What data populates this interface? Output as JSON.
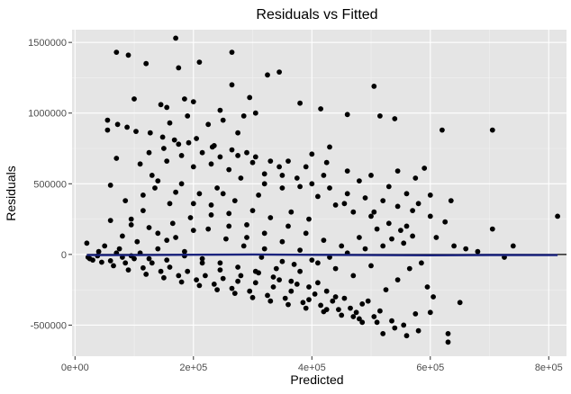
{
  "chart_data": {
    "type": "scatter",
    "title": "Residuals vs Fitted",
    "xlabel": "Predicted",
    "ylabel": "Residuals",
    "xlim": [
      -5000,
      830000
    ],
    "ylim": [
      -720000,
      1590000
    ],
    "x_ticks": [
      0,
      200000,
      400000,
      600000,
      800000
    ],
    "x_tick_labels": [
      "0e+00",
      "2e+05",
      "4e+05",
      "6e+05",
      "8e+05"
    ],
    "y_ticks": [
      -500000,
      0,
      500000,
      1000000,
      1500000
    ],
    "y_tick_labels": [
      "-500000",
      "0",
      "500000",
      "1000000",
      "1500000"
    ],
    "grid": true,
    "zero_line": 0,
    "colors": {
      "panel": "#e5e5e5",
      "grid_major": "#ffffff",
      "points": "#000000",
      "zero_line": "#000000",
      "smooth_line": "#1a237e"
    },
    "points": [
      [
        170000,
        1530000
      ],
      [
        70000,
        1430000
      ],
      [
        90000,
        1410000
      ],
      [
        265000,
        1430000
      ],
      [
        120000,
        1350000
      ],
      [
        175000,
        1320000
      ],
      [
        345000,
        1290000
      ],
      [
        325000,
        1270000
      ],
      [
        210000,
        1360000
      ],
      [
        265000,
        1200000
      ],
      [
        505000,
        1190000
      ],
      [
        100000,
        1100000
      ],
      [
        185000,
        1100000
      ],
      [
        145000,
        1060000
      ],
      [
        155000,
        1040000
      ],
      [
        295000,
        1110000
      ],
      [
        380000,
        1070000
      ],
      [
        415000,
        1030000
      ],
      [
        460000,
        990000
      ],
      [
        515000,
        980000
      ],
      [
        540000,
        960000
      ],
      [
        305000,
        1000000
      ],
      [
        55000,
        950000
      ],
      [
        55000,
        880000
      ],
      [
        72000,
        920000
      ],
      [
        88000,
        900000
      ],
      [
        103000,
        870000
      ],
      [
        127000,
        860000
      ],
      [
        148000,
        830000
      ],
      [
        168000,
        810000
      ],
      [
        192000,
        790000
      ],
      [
        232000,
        760000
      ],
      [
        305000,
        690000
      ],
      [
        330000,
        660000
      ],
      [
        345000,
        620000
      ],
      [
        400000,
        710000
      ],
      [
        430000,
        760000
      ],
      [
        620000,
        880000
      ],
      [
        705000,
        880000
      ],
      [
        70000,
        680000
      ],
      [
        110000,
        640000
      ],
      [
        130000,
        560000
      ],
      [
        60000,
        490000
      ],
      [
        180000,
        500000
      ],
      [
        250000,
        430000
      ],
      [
        310000,
        420000
      ],
      [
        365000,
        300000
      ],
      [
        395000,
        250000
      ],
      [
        455000,
        360000
      ],
      [
        505000,
        300000
      ],
      [
        560000,
        200000
      ],
      [
        590000,
        610000
      ],
      [
        600000,
        420000
      ],
      [
        635000,
        380000
      ],
      [
        625000,
        230000
      ],
      [
        610000,
        120000
      ],
      [
        640000,
        60000
      ],
      [
        660000,
        40000
      ],
      [
        680000,
        20000
      ],
      [
        705000,
        180000
      ],
      [
        740000,
        60000
      ],
      [
        725000,
        -20000
      ],
      [
        815000,
        270000
      ],
      [
        80000,
        130000
      ],
      [
        95000,
        210000
      ],
      [
        115000,
        310000
      ],
      [
        85000,
        380000
      ],
      [
        60000,
        240000
      ],
      [
        50000,
        60000
      ],
      [
        38000,
        -10000
      ],
      [
        20000,
        80000
      ],
      [
        22000,
        -20000
      ],
      [
        25000,
        -30000
      ],
      [
        30000,
        -40000
      ],
      [
        45000,
        -55000
      ],
      [
        65000,
        -80000
      ],
      [
        90000,
        -110000
      ],
      [
        120000,
        -140000
      ],
      [
        150000,
        -165000
      ],
      [
        180000,
        -195000
      ],
      [
        210000,
        -220000
      ],
      [
        240000,
        -250000
      ],
      [
        270000,
        -275000
      ],
      [
        300000,
        -305000
      ],
      [
        330000,
        -330000
      ],
      [
        360000,
        -355000
      ],
      [
        390000,
        -380000
      ],
      [
        420000,
        -405000
      ],
      [
        450000,
        -430000
      ],
      [
        480000,
        -455000
      ],
      [
        510000,
        -480000
      ],
      [
        540000,
        -520000
      ],
      [
        560000,
        -575000
      ],
      [
        580000,
        -540000
      ],
      [
        600000,
        -410000
      ],
      [
        630000,
        -560000
      ],
      [
        630000,
        -620000
      ],
      [
        650000,
        -340000
      ],
      [
        520000,
        -560000
      ],
      [
        470000,
        -440000
      ],
      [
        440000,
        -300000
      ],
      [
        410000,
        -200000
      ],
      [
        380000,
        -120000
      ],
      [
        350000,
        -50000
      ],
      [
        320000,
        40000
      ],
      [
        290000,
        120000
      ],
      [
        260000,
        200000
      ],
      [
        230000,
        280000
      ],
      [
        200000,
        360000
      ],
      [
        170000,
        440000
      ],
      [
        140000,
        520000
      ],
      [
        200000,
        620000
      ],
      [
        230000,
        640000
      ],
      [
        260000,
        600000
      ],
      [
        280000,
        540000
      ],
      [
        320000,
        500000
      ],
      [
        350000,
        470000
      ],
      [
        380000,
        480000
      ],
      [
        410000,
        410000
      ],
      [
        440000,
        350000
      ],
      [
        470000,
        300000
      ],
      [
        500000,
        270000
      ],
      [
        530000,
        220000
      ],
      [
        550000,
        170000
      ],
      [
        570000,
        130000
      ],
      [
        555000,
        80000
      ],
      [
        520000,
        60000
      ],
      [
        490000,
        40000
      ],
      [
        460000,
        10000
      ],
      [
        430000,
        -20000
      ],
      [
        400000,
        -40000
      ],
      [
        370000,
        -70000
      ],
      [
        340000,
        -100000
      ],
      [
        310000,
        -130000
      ],
      [
        280000,
        -150000
      ],
      [
        250000,
        -170000
      ],
      [
        220000,
        -150000
      ],
      [
        190000,
        -120000
      ],
      [
        160000,
        -90000
      ],
      [
        130000,
        -60000
      ],
      [
        100000,
        -30000
      ],
      [
        75000,
        40000
      ],
      [
        105000,
        90000
      ],
      [
        140000,
        150000
      ],
      [
        165000,
        220000
      ],
      [
        195000,
        260000
      ],
      [
        225000,
        180000
      ],
      [
        255000,
        110000
      ],
      [
        285000,
        60000
      ],
      [
        315000,
        -20000
      ],
      [
        345000,
        -180000
      ],
      [
        375000,
        -210000
      ],
      [
        405000,
        -280000
      ],
      [
        435000,
        -330000
      ],
      [
        465000,
        -380000
      ],
      [
        495000,
        -330000
      ],
      [
        525000,
        -250000
      ],
      [
        545000,
        -180000
      ],
      [
        565000,
        -100000
      ],
      [
        585000,
        -60000
      ],
      [
        595000,
        -230000
      ],
      [
        605000,
        -300000
      ],
      [
        575000,
        -420000
      ],
      [
        485000,
        -480000
      ],
      [
        425000,
        -390000
      ],
      [
        395000,
        -320000
      ],
      [
        365000,
        -260000
      ],
      [
        335000,
        -230000
      ],
      [
        305000,
        -200000
      ],
      [
        275000,
        -190000
      ],
      [
        245000,
        -110000
      ],
      [
        215000,
        -60000
      ],
      [
        185000,
        20000
      ],
      [
        155000,
        100000
      ],
      [
        125000,
        190000
      ],
      [
        95000,
        250000
      ],
      [
        115000,
        420000
      ],
      [
        135000,
        470000
      ],
      [
        160000,
        360000
      ],
      [
        210000,
        430000
      ],
      [
        240000,
        470000
      ],
      [
        270000,
        380000
      ],
      [
        300000,
        310000
      ],
      [
        330000,
        260000
      ],
      [
        360000,
        200000
      ],
      [
        390000,
        150000
      ],
      [
        420000,
        100000
      ],
      [
        450000,
        60000
      ],
      [
        480000,
        120000
      ],
      [
        510000,
        180000
      ],
      [
        535000,
        110000
      ],
      [
        500000,
        -80000
      ],
      [
        470000,
        -150000
      ],
      [
        440000,
        -100000
      ],
      [
        410000,
        -60000
      ],
      [
        380000,
        30000
      ],
      [
        350000,
        90000
      ],
      [
        320000,
        150000
      ],
      [
        290000,
        210000
      ],
      [
        260000,
        290000
      ],
      [
        230000,
        350000
      ],
      [
        200000,
        170000
      ],
      [
        170000,
        120000
      ],
      [
        140000,
        40000
      ],
      [
        110000,
        10000
      ],
      [
        80000,
        -20000
      ],
      [
        60000,
        -45000
      ],
      [
        200000,
        1080000
      ],
      [
        245000,
        1020000
      ],
      [
        275000,
        860000
      ],
      [
        225000,
        920000
      ],
      [
        250000,
        950000
      ],
      [
        285000,
        980000
      ],
      [
        190000,
        980000
      ],
      [
        160000,
        930000
      ],
      [
        180000,
        700000
      ],
      [
        215000,
        720000
      ],
      [
        245000,
        690000
      ],
      [
        275000,
        700000
      ],
      [
        300000,
        650000
      ],
      [
        155000,
        660000
      ],
      [
        125000,
        720000
      ],
      [
        150000,
        750000
      ],
      [
        175000,
        780000
      ],
      [
        205000,
        820000
      ],
      [
        235000,
        770000
      ],
      [
        265000,
        740000
      ],
      [
        290000,
        720000
      ],
      [
        320000,
        570000
      ],
      [
        350000,
        560000
      ],
      [
        375000,
        540000
      ],
      [
        400000,
        500000
      ],
      [
        430000,
        470000
      ],
      [
        460000,
        430000
      ],
      [
        490000,
        400000
      ],
      [
        520000,
        380000
      ],
      [
        545000,
        340000
      ],
      [
        570000,
        310000
      ],
      [
        600000,
        270000
      ],
      [
        575000,
        540000
      ],
      [
        545000,
        590000
      ],
      [
        500000,
        560000
      ],
      [
        460000,
        590000
      ],
      [
        425000,
        650000
      ],
      [
        390000,
        620000
      ],
      [
        360000,
        660000
      ],
      [
        420000,
        560000
      ],
      [
        480000,
        520000
      ],
      [
        530000,
        480000
      ],
      [
        560000,
        430000
      ],
      [
        580000,
        360000
      ],
      [
        85000,
        -60000
      ],
      [
        115000,
        -95000
      ],
      [
        145000,
        -120000
      ],
      [
        175000,
        -150000
      ],
      [
        205000,
        -180000
      ],
      [
        235000,
        -210000
      ],
      [
        265000,
        -240000
      ],
      [
        295000,
        -260000
      ],
      [
        325000,
        -290000
      ],
      [
        355000,
        -310000
      ],
      [
        385000,
        -340000
      ],
      [
        415000,
        -360000
      ],
      [
        445000,
        -390000
      ],
      [
        475000,
        -410000
      ],
      [
        505000,
        -440000
      ],
      [
        535000,
        -470000
      ],
      [
        555000,
        -500000
      ],
      [
        515000,
        -400000
      ],
      [
        485000,
        -350000
      ],
      [
        455000,
        -310000
      ],
      [
        425000,
        -260000
      ],
      [
        395000,
        -230000
      ],
      [
        365000,
        -190000
      ],
      [
        335000,
        -160000
      ],
      [
        305000,
        -120000
      ],
      [
        275000,
        -90000
      ],
      [
        245000,
        -60000
      ],
      [
        215000,
        -30000
      ],
      [
        185000,
        -10000
      ],
      [
        155000,
        -40000
      ],
      [
        125000,
        -30000
      ],
      [
        95000,
        -10000
      ],
      [
        70000,
        10000
      ],
      [
        40000,
        20000
      ]
    ],
    "smooth_line": {
      "x": [
        20000,
        100000,
        200000,
        300000,
        400000,
        500000,
        600000,
        700000,
        815000
      ],
      "y": [
        -5000,
        -5000,
        -2000,
        0,
        -3000,
        -5000,
        -6000,
        -4000,
        -5000
      ]
    }
  }
}
